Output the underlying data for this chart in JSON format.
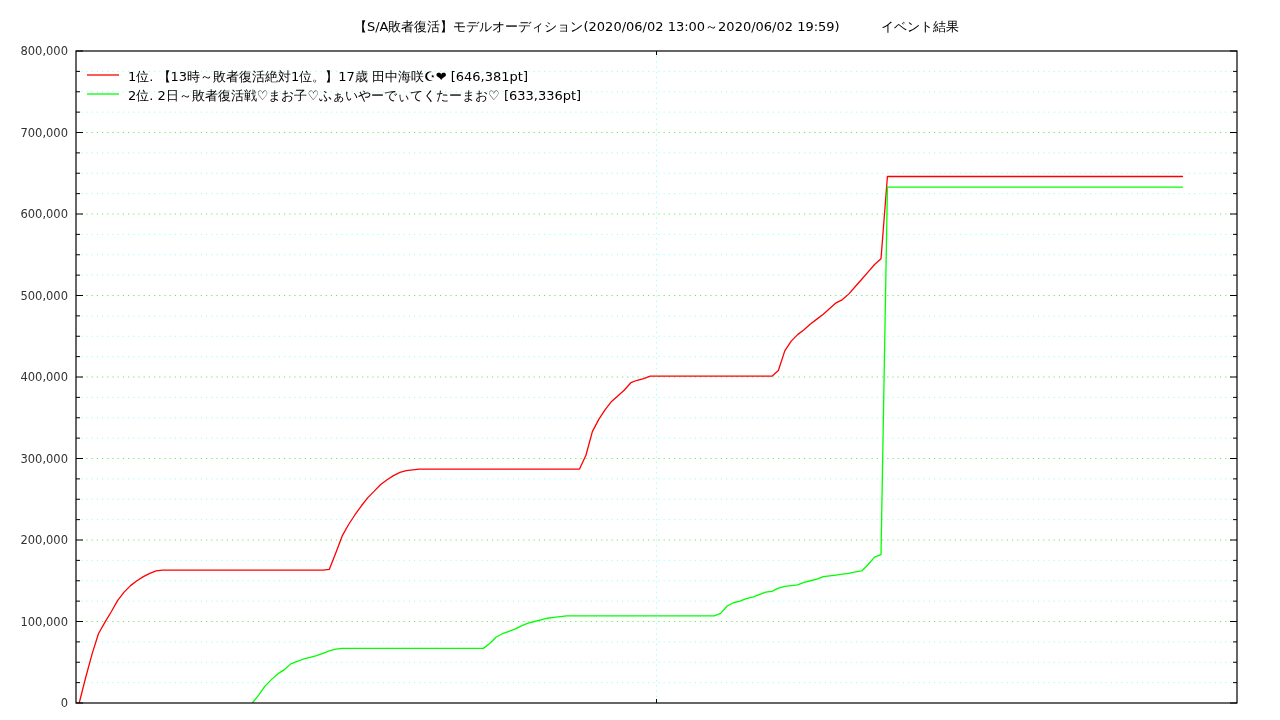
{
  "chart_data": {
    "type": "line",
    "title": "【S/A敗者復活】モデルオーディション(2020/06/02 13:00～2020/06/02 19:59)          イベント結果",
    "categories": [
      null,
      null,
      null,
      null,
      null,
      null,
      null,
      null,
      null,
      null,
      null,
      null,
      null,
      null,
      null,
      null,
      null,
      null,
      null,
      null,
      null,
      null,
      null,
      null,
      null,
      null,
      null,
      null,
      null,
      null,
      null,
      null,
      null,
      null,
      null,
      null,
      null,
      null,
      null,
      null,
      null,
      null,
      null,
      null,
      null,
      null,
      null,
      null,
      null,
      null,
      null,
      null,
      null,
      null,
      null,
      null,
      null,
      null,
      null,
      null,
      null,
      null,
      null,
      null,
      null,
      null,
      null,
      null,
      null,
      null,
      null,
      null,
      null,
      null,
      null,
      null,
      null,
      null,
      null,
      null,
      null,
      null,
      null,
      null,
      null,
      null,
      null,
      null,
      null,
      null,
      null,
      null,
      null,
      null,
      null,
      null,
      null,
      null,
      null,
      null,
      null,
      null,
      null,
      null,
      null,
      null,
      null,
      null,
      null,
      null,
      null,
      null,
      null,
      null,
      null,
      null,
      null,
      null,
      null,
      null,
      null,
      null,
      null,
      null,
      null,
      null,
      null,
      null,
      null,
      null,
      null,
      null,
      null,
      null,
      null,
      null,
      null,
      null,
      null,
      null,
      null,
      null,
      null,
      null,
      null,
      null,
      null,
      null,
      null,
      null,
      null,
      null,
      null,
      null,
      null,
      null,
      null,
      null,
      null,
      null,
      null,
      null,
      null,
      null,
      null,
      null,
      null,
      null,
      null,
      null,
      null,
      null,
      null,
      null,
      null,
      null,
      null,
      null,
      null,
      null,
      null
    ],
    "series": [
      {
        "name": "1位. 【13時～敗者復活絶対1位。】17歳 田中海咲☪❤ [646,381pt]",
        "color": "#ff0000",
        "values": [
          0,
          31000,
          60000,
          85000,
          99000,
          112000,
          126000,
          136000,
          144000,
          150000,
          155000,
          159000,
          162000,
          163000,
          163000,
          163000,
          163000,
          163000,
          163000,
          163000,
          163000,
          163000,
          163000,
          163000,
          163000,
          163000,
          163000,
          163000,
          163000,
          163000,
          163000,
          163000,
          163000,
          163000,
          163000,
          163000,
          163000,
          163000,
          163000,
          164000,
          184000,
          205000,
          219000,
          231000,
          242000,
          252000,
          260000,
          268000,
          274000,
          279000,
          283000,
          285000,
          286000,
          287000,
          287000,
          287000,
          287000,
          287000,
          287000,
          287000,
          287000,
          287000,
          287000,
          287000,
          287000,
          287000,
          287000,
          287000,
          287000,
          287000,
          287000,
          287000,
          287000,
          287000,
          287000,
          287000,
          287000,
          287000,
          287000,
          304000,
          333000,
          348000,
          360000,
          370000,
          377000,
          384000,
          393000,
          396000,
          398000,
          401000,
          401000,
          401000,
          401000,
          401000,
          401000,
          401000,
          401000,
          401000,
          401000,
          401000,
          401000,
          401000,
          401000,
          401000,
          401000,
          401000,
          401000,
          401000,
          401000,
          408000,
          432000,
          444000,
          452000,
          458000,
          465000,
          471000,
          477000,
          484000,
          491000,
          495000,
          502000,
          511000,
          520000,
          529000,
          538000,
          545000,
          646000,
          646000,
          646000,
          646000,
          646000,
          646000,
          646000,
          646000,
          646000,
          646000,
          646000,
          646000,
          646000,
          646000,
          646000,
          646000,
          646000,
          646000,
          646000,
          646000,
          646000,
          646000,
          646000,
          646000,
          646000,
          646000,
          646000,
          646000,
          646000,
          646000,
          646000,
          646000,
          646000,
          646000,
          646000,
          646000,
          646000,
          646000,
          646000,
          646000,
          646000,
          646000,
          646000,
          646000,
          646000,
          646000,
          646000,
          null,
          null,
          null,
          null,
          null,
          null,
          null,
          null
        ]
      },
      {
        "name": "2位. 2日～敗者復活戦♡まお子♡ふぁいやーでぃてくたーまお♡ [633,336pt]",
        "color": "#00ff00",
        "values": [
          null,
          null,
          null,
          null,
          null,
          null,
          null,
          null,
          null,
          null,
          null,
          null,
          null,
          null,
          null,
          null,
          null,
          null,
          null,
          null,
          null,
          null,
          null,
          null,
          null,
          null,
          null,
          0,
          10000,
          21000,
          29000,
          36000,
          41000,
          48000,
          51000,
          54000,
          56000,
          58000,
          61000,
          64000,
          66000,
          67000,
          67000,
          67000,
          67000,
          67000,
          67000,
          67000,
          67000,
          67000,
          67000,
          67000,
          67000,
          67000,
          67000,
          67000,
          67000,
          67000,
          67000,
          67000,
          67000,
          67000,
          67000,
          67000,
          73000,
          81000,
          85000,
          88000,
          91000,
          95000,
          98000,
          100000,
          102000,
          104000,
          105000,
          106000,
          107000,
          107000,
          107000,
          107000,
          107000,
          107000,
          107000,
          107000,
          107000,
          107000,
          107000,
          107000,
          107000,
          107000,
          107000,
          107000,
          107000,
          107000,
          107000,
          107000,
          107000,
          107000,
          107000,
          107000,
          110000,
          119000,
          123000,
          125000,
          128000,
          130000,
          133000,
          136000,
          137000,
          141000,
          143000,
          144000,
          145000,
          148000,
          150000,
          152000,
          155000,
          156000,
          157000,
          158000,
          159000,
          161000,
          162000,
          170000,
          179000,
          182000,
          633000,
          633000,
          633000,
          633000,
          633000,
          633000,
          633000,
          633000,
          633000,
          633000,
          633000,
          633000,
          633000,
          633000,
          633000,
          633000,
          633000,
          633000,
          633000,
          633000,
          633000,
          633000,
          633000,
          633000,
          633000,
          633000,
          633000,
          633000,
          633000,
          633000,
          633000,
          633000,
          633000,
          633000,
          633000,
          633000,
          633000,
          633000,
          633000,
          633000,
          633000,
          633000,
          633000,
          633000,
          633000,
          633000,
          633000,
          null,
          null,
          null,
          null,
          null,
          null,
          null,
          null
        ]
      }
    ],
    "ylim": [
      0,
      800000
    ],
    "yticks": [
      0,
      {
        "value": 25000,
        "label": null
      },
      {
        "value": 50000,
        "label": null
      },
      {
        "value": 75000,
        "label": null
      },
      {
        "value": 100000,
        "label": "100,000"
      },
      {
        "value": 125000,
        "label": null
      },
      {
        "value": 150000,
        "label": null
      },
      {
        "value": 175000,
        "label": null
      },
      {
        "value": 200000,
        "label": "200,000"
      },
      {
        "value": 225000,
        "label": null
      },
      {
        "value": 250000,
        "label": null
      },
      {
        "value": 275000,
        "label": null
      },
      {
        "value": 300000,
        "label": "300,000"
      },
      {
        "value": 325000,
        "label": null
      },
      {
        "value": 350000,
        "label": null
      },
      {
        "value": 375000,
        "label": null
      },
      {
        "value": 400000,
        "label": "400,000"
      },
      {
        "value": 425000,
        "label": null
      },
      {
        "value": 450000,
        "label": null
      },
      {
        "value": 475000,
        "label": null
      },
      {
        "value": 500000,
        "label": "500,000"
      },
      {
        "value": 525000,
        "label": null
      },
      {
        "value": 550000,
        "label": null
      },
      {
        "value": 575000,
        "label": null
      },
      {
        "value": 600000,
        "label": "600,000"
      },
      {
        "value": 625000,
        "label": null
      },
      {
        "value": 650000,
        "label": null
      },
      {
        "value": 675000,
        "label": null
      },
      {
        "value": 700000,
        "label": "700,000"
      },
      {
        "value": 725000,
        "label": null
      },
      {
        "value": 750000,
        "label": null
      },
      {
        "value": 775000,
        "label": null
      },
      {
        "value": 800000,
        "label": "800,000"
      }
    ],
    "grid": true,
    "legend": "top left",
    "tick_labels": "y"
  }
}
